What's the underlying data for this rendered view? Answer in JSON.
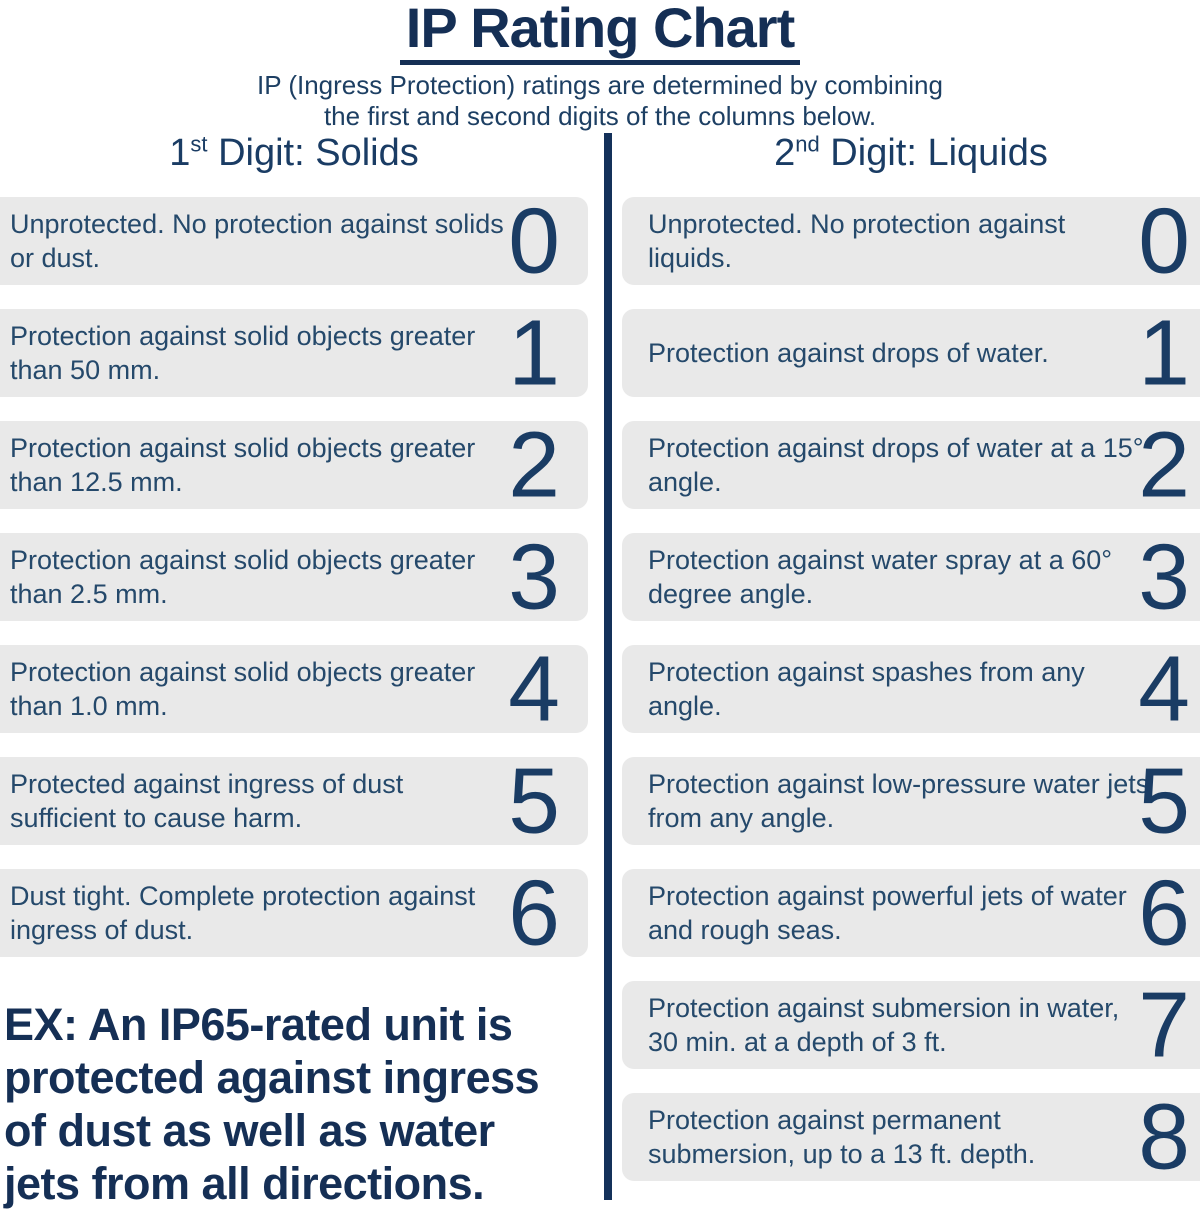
{
  "title": "IP Rating Chart",
  "subtitle_line1": "IP (Ingress Protection) ratings are determined by combining",
  "subtitle_line2": "the first and second digits of the columns below.",
  "colors": {
    "navy_dark": "#152f55",
    "navy": "#1a3c64",
    "body_text": "#25496b",
    "row_bg": "#e9e9e9",
    "background": "#ffffff"
  },
  "columns": {
    "solids": {
      "heading_number": "1",
      "heading_ordinal": "st",
      "heading_rest": " Digit: Solids",
      "rows": [
        {
          "digit": "0",
          "description": "Unprotected. No protection against solids or dust."
        },
        {
          "digit": "1",
          "description": "Protection against solid objects greater than 50 mm."
        },
        {
          "digit": "2",
          "description": "Protection against solid objects greater than 12.5 mm."
        },
        {
          "digit": "3",
          "description": "Protection against solid objects greater than 2.5 mm."
        },
        {
          "digit": "4",
          "description": "Protection against solid objects greater than 1.0 mm."
        },
        {
          "digit": "5",
          "description": "Protected against ingress of dust sufficient to cause harm."
        },
        {
          "digit": "6",
          "description": "Dust tight. Complete protection against ingress of dust."
        }
      ]
    },
    "liquids": {
      "heading_number": "2",
      "heading_ordinal": "nd",
      "heading_rest": " Digit: Liquids",
      "rows": [
        {
          "digit": "0",
          "description": "Unprotected. No protection against liquids."
        },
        {
          "digit": "1",
          "description": "Protection against drops of water."
        },
        {
          "digit": "2",
          "description": "Protection against drops of water at a 15° angle."
        },
        {
          "digit": "3",
          "description": "Protection against water spray at a 60° degree angle."
        },
        {
          "digit": "4",
          "description": "Protection against spashes from any angle."
        },
        {
          "digit": "5",
          "description": "Protection against low-pressure water jets from any angle."
        },
        {
          "digit": "6",
          "description": "Protection against powerful jets of water and rough seas."
        },
        {
          "digit": "7",
          "description": "Protection against submersion in water, 30 min. at a depth of 3 ft."
        },
        {
          "digit": "8",
          "description": "Protection against permanent submersion, up to a 13 ft. depth."
        }
      ]
    }
  },
  "example": {
    "line1": "EX: An IP65-rated unit is",
    "line2": "protected against ingress",
    "line3": "of dust as well as water",
    "line4": "jets from all directions."
  }
}
